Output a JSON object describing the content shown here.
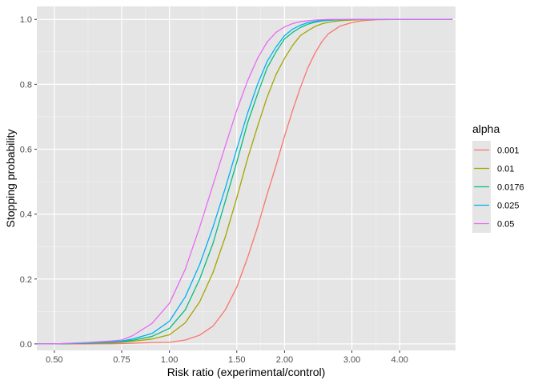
{
  "chart_data": {
    "type": "line",
    "title": "",
    "xlabel": "Risk ratio (experimental/control)",
    "ylabel": "Stopping probability",
    "x_scale": "log",
    "xlim": [
      0.45,
      5.6
    ],
    "ylim": [
      -0.02,
      1.04
    ],
    "x_ticks": [
      0.5,
      0.75,
      1.0,
      1.5,
      2.0,
      3.0,
      4.0
    ],
    "x_tick_labels": [
      "0.50",
      "0.75",
      "1.00",
      "1.50",
      "2.00",
      "3.00",
      "4.00"
    ],
    "y_ticks": [
      0,
      0.2,
      0.4,
      0.6,
      0.8,
      1.0
    ],
    "y_tick_labels": [
      "0.0",
      "0.2",
      "0.4",
      "0.6",
      "0.8",
      "1.0"
    ],
    "grid": true,
    "legend": {
      "title": "alpha",
      "position": "right"
    },
    "x": [
      0.45,
      0.5,
      0.6,
      0.7,
      0.75,
      0.8,
      0.9,
      1.0,
      1.1,
      1.2,
      1.3,
      1.4,
      1.5,
      1.6,
      1.7,
      1.8,
      1.9,
      2.0,
      2.1,
      2.2,
      2.3,
      2.4,
      2.5,
      2.6,
      2.8,
      3.0,
      3.2,
      3.5,
      4.0,
      4.5,
      5.0,
      5.5
    ],
    "series": [
      {
        "name": "0.001",
        "color": "#F8766D",
        "values": [
          0.0,
          0.0,
          0.0,
          0.0005,
          0.001,
          0.002,
          0.004,
          0.005,
          0.012,
          0.027,
          0.055,
          0.105,
          0.175,
          0.265,
          0.36,
          0.46,
          0.55,
          0.64,
          0.72,
          0.79,
          0.85,
          0.895,
          0.93,
          0.955,
          0.98,
          0.99,
          0.996,
          0.999,
          1.0,
          1.0,
          1.0,
          1.0
        ]
      },
      {
        "name": "0.01",
        "color": "#A3A500",
        "values": [
          0.0,
          0.0,
          0.001,
          0.003,
          0.005,
          0.008,
          0.015,
          0.028,
          0.065,
          0.13,
          0.22,
          0.33,
          0.45,
          0.57,
          0.67,
          0.76,
          0.83,
          0.88,
          0.92,
          0.95,
          0.965,
          0.978,
          0.986,
          0.991,
          0.996,
          0.998,
          0.999,
          1.0,
          1.0,
          1.0,
          1.0,
          1.0
        ]
      },
      {
        "name": "0.0176",
        "color": "#00BF7D",
        "values": [
          0.0,
          0.0,
          0.002,
          0.005,
          0.007,
          0.011,
          0.023,
          0.048,
          0.105,
          0.2,
          0.31,
          0.44,
          0.56,
          0.68,
          0.77,
          0.85,
          0.9,
          0.94,
          0.96,
          0.975,
          0.985,
          0.991,
          0.995,
          0.997,
          0.999,
          1.0,
          1.0,
          1.0,
          1.0,
          1.0,
          1.0,
          1.0
        ]
      },
      {
        "name": "0.025",
        "color": "#00B0F6",
        "values": [
          0.0,
          0.0,
          0.003,
          0.006,
          0.009,
          0.015,
          0.032,
          0.07,
          0.145,
          0.245,
          0.36,
          0.48,
          0.6,
          0.71,
          0.8,
          0.87,
          0.915,
          0.95,
          0.97,
          0.982,
          0.99,
          0.994,
          0.997,
          0.998,
          0.999,
          1.0,
          1.0,
          1.0,
          1.0,
          1.0,
          1.0,
          1.0
        ]
      },
      {
        "name": "0.05",
        "color": "#E76BF3",
        "values": [
          0.0,
          0.0,
          0.004,
          0.009,
          0.012,
          0.025,
          0.063,
          0.125,
          0.23,
          0.36,
          0.49,
          0.61,
          0.72,
          0.81,
          0.88,
          0.93,
          0.96,
          0.977,
          0.987,
          0.993,
          0.996,
          0.998,
          0.999,
          1.0,
          1.0,
          1.0,
          1.0,
          1.0,
          1.0,
          1.0,
          1.0,
          1.0
        ]
      }
    ]
  }
}
